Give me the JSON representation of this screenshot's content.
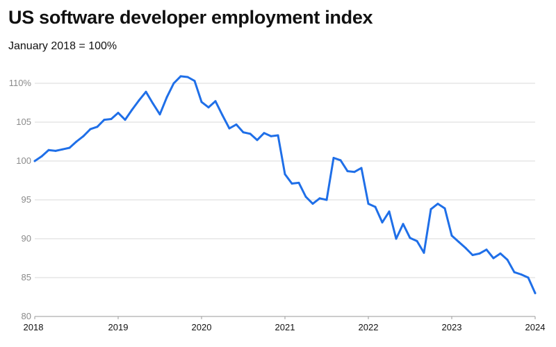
{
  "chart_data": {
    "type": "line",
    "title": "US software developer employment index",
    "subtitle": "January 2018 = 100%",
    "xlabel": "",
    "ylabel": "",
    "xlim": [
      2018,
      2024
    ],
    "ylim": [
      80,
      110
    ],
    "y_ticks": [
      {
        "value": 80,
        "label": "80"
      },
      {
        "value": 85,
        "label": "85"
      },
      {
        "value": 90,
        "label": "90"
      },
      {
        "value": 95,
        "label": "95"
      },
      {
        "value": 100,
        "label": "100"
      },
      {
        "value": 105,
        "label": "105"
      },
      {
        "value": 110,
        "label": "110%"
      }
    ],
    "x_ticks": [
      {
        "value": 2018,
        "label": "2018"
      },
      {
        "value": 2019,
        "label": "2019"
      },
      {
        "value": 2020,
        "label": "2020"
      },
      {
        "value": 2021,
        "label": "2021"
      },
      {
        "value": 2022,
        "label": "2022"
      },
      {
        "value": 2023,
        "label": "2023"
      },
      {
        "value": 2024,
        "label": "2024"
      }
    ],
    "grid": true,
    "series": [
      {
        "name": "US software developer employment index",
        "color": "#1f6fe8",
        "x": [
          2018.0,
          2018.083,
          2018.167,
          2018.25,
          2018.333,
          2018.417,
          2018.5,
          2018.583,
          2018.667,
          2018.75,
          2018.833,
          2018.917,
          2019.0,
          2019.083,
          2019.167,
          2019.25,
          2019.333,
          2019.417,
          2019.5,
          2019.583,
          2019.667,
          2019.75,
          2019.833,
          2019.917,
          2020.0,
          2020.083,
          2020.167,
          2020.25,
          2020.333,
          2020.417,
          2020.5,
          2020.583,
          2020.667,
          2020.75,
          2020.833,
          2020.917,
          2021.0,
          2021.083,
          2021.167,
          2021.25,
          2021.333,
          2021.417,
          2021.5,
          2021.583,
          2021.667,
          2021.75,
          2021.833,
          2021.917,
          2022.0,
          2022.083,
          2022.167,
          2022.25,
          2022.333,
          2022.417,
          2022.5,
          2022.583,
          2022.667,
          2022.75,
          2022.833,
          2022.917,
          2023.0,
          2023.083,
          2023.167,
          2023.25,
          2023.333,
          2023.417,
          2023.5,
          2023.583,
          2023.667,
          2023.75,
          2023.833,
          2023.917,
          2024.0
        ],
        "values": [
          100.0,
          100.6,
          101.4,
          101.3,
          101.5,
          101.7,
          102.5,
          103.2,
          104.1,
          104.4,
          105.3,
          105.4,
          106.2,
          105.3,
          106.6,
          107.8,
          108.9,
          107.4,
          106.0,
          108.2,
          110.0,
          110.9,
          110.8,
          110.3,
          107.6,
          106.9,
          107.7,
          105.9,
          104.2,
          104.7,
          103.7,
          103.5,
          102.7,
          103.6,
          103.2,
          103.3,
          98.3,
          97.1,
          97.2,
          95.4,
          94.5,
          95.2,
          95.0,
          100.4,
          100.1,
          98.7,
          98.6,
          99.1,
          94.5,
          94.1,
          92.1,
          93.5,
          90.0,
          91.9,
          90.1,
          89.7,
          88.2,
          93.8,
          94.5,
          93.9,
          90.4,
          89.6,
          88.8,
          87.9,
          88.1,
          88.6,
          87.5,
          88.1,
          87.3,
          85.7,
          85.4,
          85.0,
          83.0
        ]
      }
    ]
  }
}
